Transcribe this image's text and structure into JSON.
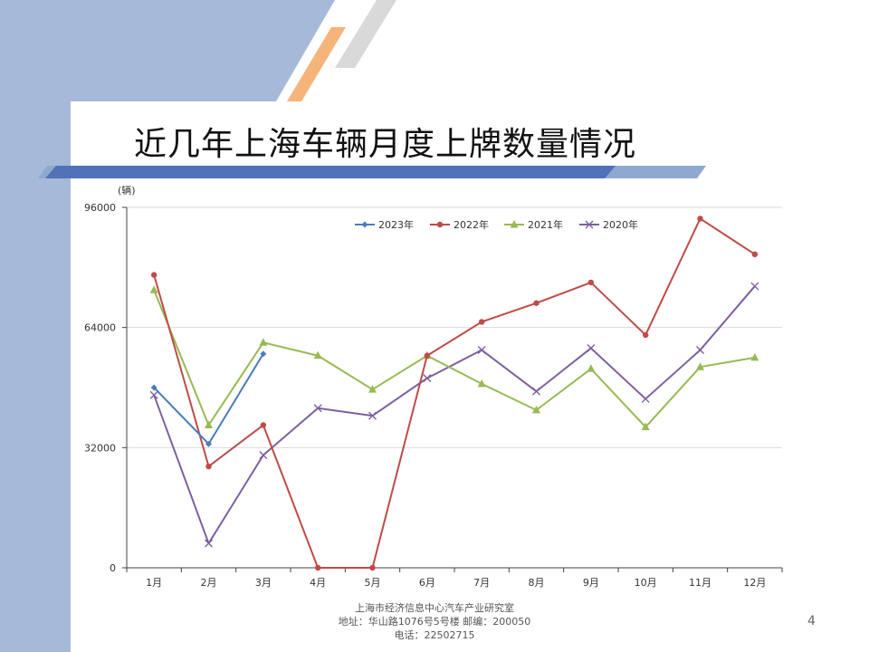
{
  "slide": {
    "title": "近几年上海车辆月度上牌数量情况",
    "page_number": "4",
    "footer": {
      "line1": "上海市经济信息中心汽车产业研究室",
      "line2": "地址：华山路1076号5号楼   邮编：200050",
      "line3": "电话：22502715"
    }
  },
  "chart_data": {
    "type": "line",
    "title": "",
    "unit_label": "(辆)",
    "xlabel": "",
    "ylabel": "",
    "categories": [
      "1月",
      "2月",
      "3月",
      "4月",
      "5月",
      "6月",
      "7月",
      "8月",
      "9月",
      "10月",
      "11月",
      "12月"
    ],
    "ylim": [
      0,
      96000
    ],
    "yticks": [
      0,
      32000,
      64000,
      96000
    ],
    "grid": true,
    "legend_position": "top",
    "series": [
      {
        "name": "2023年",
        "color": "#4a7ebb",
        "marker": "diamond",
        "values": [
          48000,
          33000,
          57000,
          null,
          null,
          null,
          null,
          null,
          null,
          null,
          null,
          null
        ]
      },
      {
        "name": "2022年",
        "color": "#be4b48",
        "marker": "circle",
        "values": [
          78000,
          27000,
          38000,
          0,
          0,
          56500,
          65500,
          70500,
          76000,
          62000,
          93000,
          83500
        ]
      },
      {
        "name": "2021年",
        "color": "#98b954",
        "marker": "triangle",
        "values": [
          74000,
          38000,
          60000,
          56500,
          47500,
          56500,
          49000,
          42000,
          53000,
          37500,
          53500,
          56000
        ]
      },
      {
        "name": "2020年",
        "color": "#7d60a0",
        "marker": "x",
        "values": [
          46000,
          6500,
          30000,
          42500,
          40500,
          50500,
          58000,
          47000,
          58500,
          45000,
          58000,
          75000
        ]
      }
    ]
  }
}
